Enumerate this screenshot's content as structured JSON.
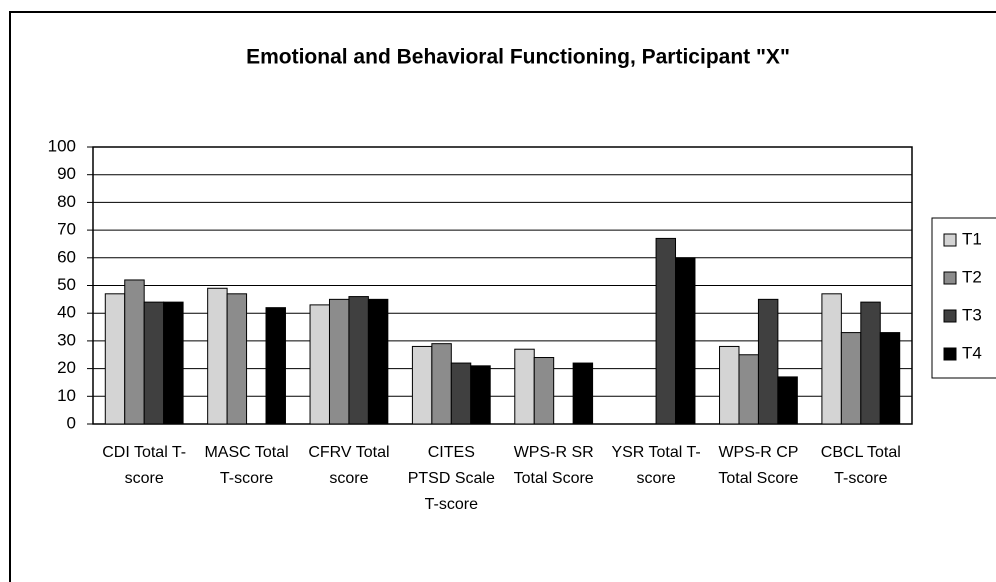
{
  "chart_data": {
    "type": "bar",
    "title": "Emotional and Behavioral Functioning, Participant \"X\"",
    "categories": [
      "CDI Total T-score",
      "MASC Total T-score",
      "CFRV Total score",
      "CITES PTSD Scale T-score",
      "WPS-R SR Total Score",
      "YSR Total T-score",
      "WPS-R CP Total Score",
      "CBCL Total T-score"
    ],
    "series": [
      {
        "name": "T1",
        "color": "#d4d4d4",
        "values": [
          47,
          49,
          43,
          28,
          27,
          null,
          28,
          47
        ]
      },
      {
        "name": "T2",
        "color": "#8c8c8c",
        "values": [
          52,
          47,
          45,
          29,
          24,
          null,
          25,
          33
        ]
      },
      {
        "name": "T3",
        "color": "#404040",
        "values": [
          44,
          null,
          46,
          22,
          null,
          67,
          45,
          44
        ]
      },
      {
        "name": "T4",
        "color": "#000000",
        "values": [
          44,
          42,
          45,
          21,
          22,
          60,
          17,
          33
        ]
      }
    ],
    "ylim": [
      0,
      100
    ],
    "yticks": [
      0,
      10,
      20,
      30,
      40,
      50,
      60,
      70,
      80,
      90,
      100
    ],
    "grid": true,
    "legend": "right"
  }
}
